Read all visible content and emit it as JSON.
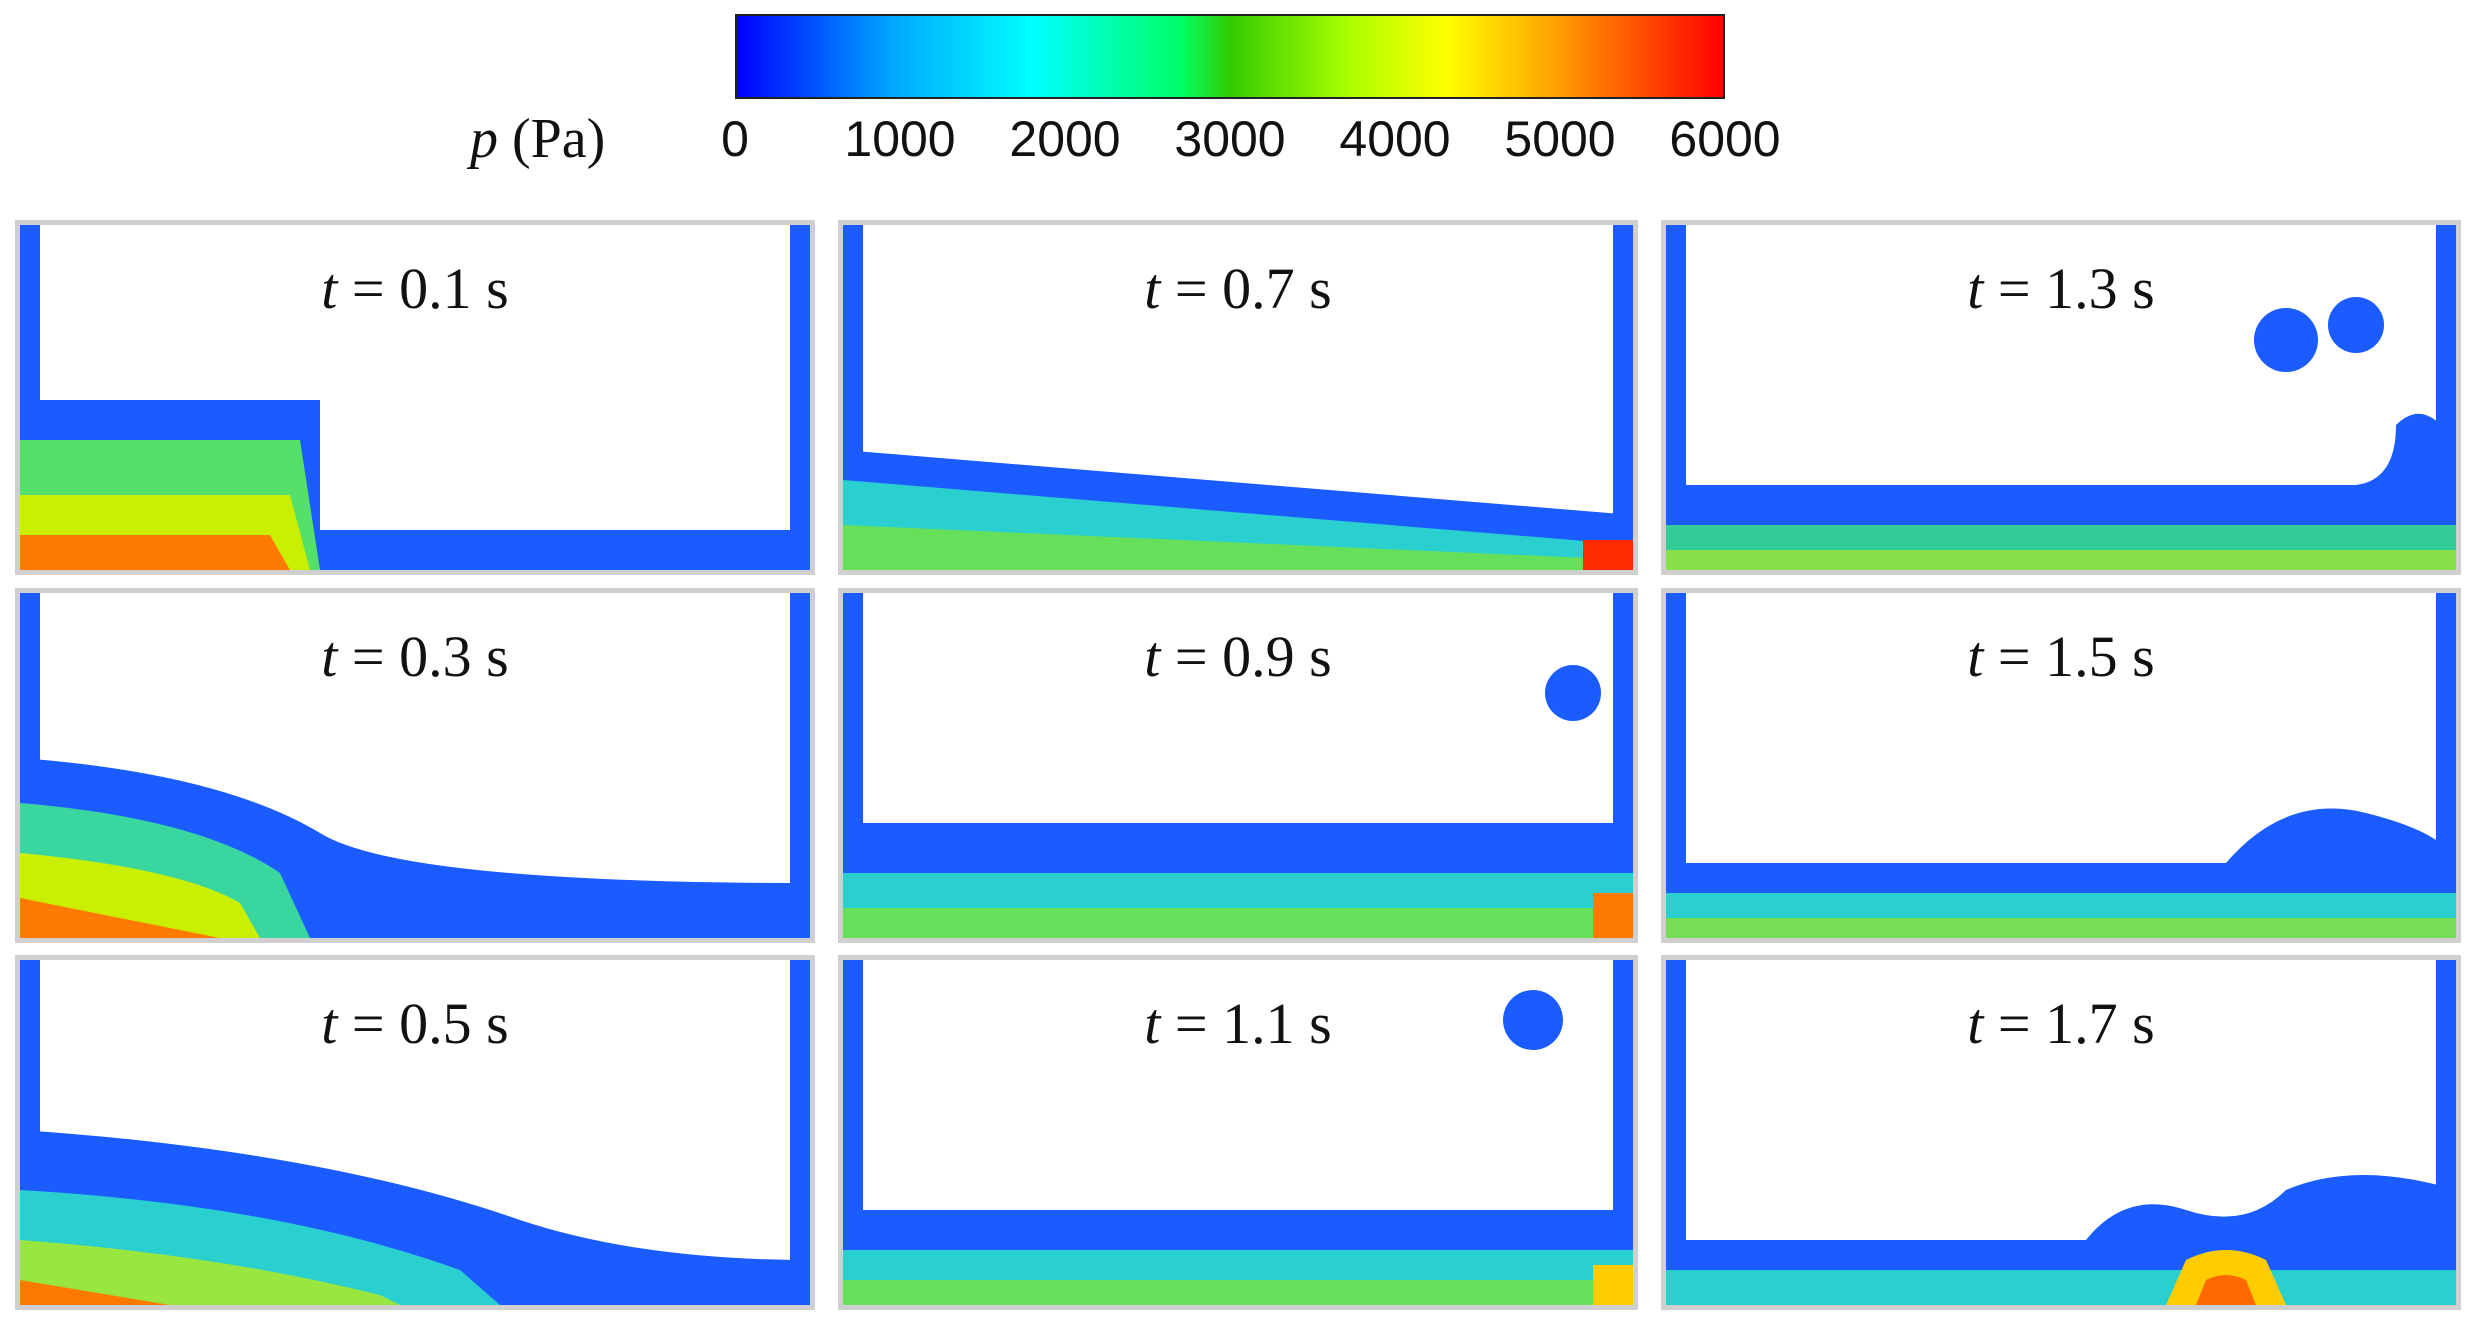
{
  "colorbar": {
    "label_var": "p",
    "label_unit": "(Pa)",
    "ticks": [
      "0",
      "1000",
      "2000",
      "3000",
      "4000",
      "5000",
      "6000"
    ],
    "range": [
      0,
      6000
    ],
    "colors": [
      "#0000ff",
      "#00aaff",
      "#00ffff",
      "#00ff66",
      "#33cc00",
      "#aaff00",
      "#ffff00",
      "#ffaa00",
      "#ff0000"
    ]
  },
  "panels": [
    {
      "t_symbol": "t",
      "time": "= 0.1 s"
    },
    {
      "t_symbol": "t",
      "time": "= 0.7 s"
    },
    {
      "t_symbol": "t",
      "time": "= 1.3 s"
    },
    {
      "t_symbol": "t",
      "time": "= 0.3 s"
    },
    {
      "t_symbol": "t",
      "time": "= 0.9 s"
    },
    {
      "t_symbol": "t",
      "time": "= 1.5 s"
    },
    {
      "t_symbol": "t",
      "time": "= 0.5 s"
    },
    {
      "t_symbol": "t",
      "time": "= 1.1 s"
    },
    {
      "t_symbol": "t",
      "time": "= 1.7 s"
    }
  ]
}
